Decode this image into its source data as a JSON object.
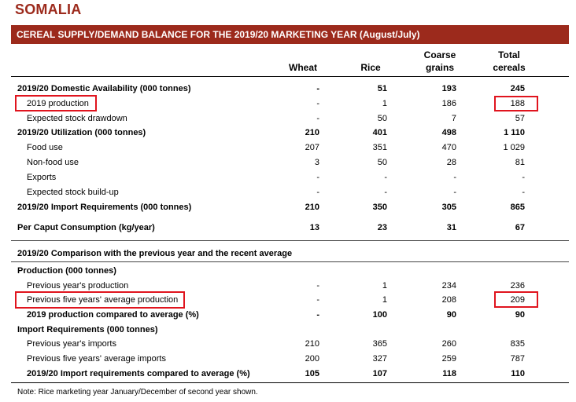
{
  "country": "SOMALIA",
  "banner": "CEREAL SUPPLY/DEMAND BALANCE FOR THE 2019/20 MARKETING YEAR (August/July)",
  "headers": {
    "wheat": "Wheat",
    "rice": "Rice",
    "coarse_1": "Coarse",
    "coarse_2": "grains",
    "total_1": "Total",
    "total_2": "cereals"
  },
  "rows": [
    {
      "label": "2019/20 Domestic Availability (000 tonnes)",
      "wheat": "-",
      "rice": "51",
      "coarse": "193",
      "total": "245"
    },
    {
      "label": "2019 production",
      "wheat": "-",
      "rice": "1",
      "coarse": "186",
      "total": "188"
    },
    {
      "label": "Expected stock drawdown",
      "wheat": "-",
      "rice": "50",
      "coarse": "7",
      "total": "57"
    },
    {
      "label": "2019/20 Utilization  (000 tonnes)",
      "wheat": "210",
      "rice": "401",
      "coarse": "498",
      "total": "1 110"
    },
    {
      "label": "Food use",
      "wheat": "207",
      "rice": "351",
      "coarse": "470",
      "total": "1 029"
    },
    {
      "label": "Non-food use",
      "wheat": "3",
      "rice": "50",
      "coarse": "28",
      "total": "81"
    },
    {
      "label": "Exports",
      "wheat": "-",
      "rice": "-",
      "coarse": "-",
      "total": "-"
    },
    {
      "label": "Expected stock build-up",
      "wheat": "-",
      "rice": "-",
      "coarse": "-",
      "total": "-"
    },
    {
      "label": "2019/20 Import Requirements  (000 tonnes)",
      "wheat": "210",
      "rice": "350",
      "coarse": "305",
      "total": "865"
    },
    {
      "label": "Per Caput Consumption (kg/year)",
      "wheat": "13",
      "rice": "23",
      "coarse": "31",
      "total": "67"
    }
  ],
  "comparison_title": "2019/20 Comparison with the previous year and the recent average",
  "production_title": "Production (000 tonnes)",
  "prod_rows": [
    {
      "label": "Previous year's production",
      "wheat": "-",
      "rice": "1",
      "coarse": "234",
      "total": "236"
    },
    {
      "label": "Previous five years' average production",
      "wheat": "-",
      "rice": "1",
      "coarse": "208",
      "total": "209"
    },
    {
      "label": "2019 production compared to average (%)",
      "wheat": "-",
      "rice": "100",
      "coarse": "90",
      "total": "90"
    }
  ],
  "import_title": "Import Requirements (000 tonnes)",
  "imp_rows": [
    {
      "label": "Previous year's imports",
      "wheat": "210",
      "rice": "365",
      "coarse": "260",
      "total": "835"
    },
    {
      "label": "Previous five years' average imports",
      "wheat": "200",
      "rice": "327",
      "coarse": "259",
      "total": "787"
    },
    {
      "label": "2019/20 Import requirements compared to average (%)",
      "wheat": "105",
      "rice": "107",
      "coarse": "118",
      "total": "110"
    }
  ],
  "note": "Note: Rice marketing year January/December of second year shown.",
  "colors": {
    "banner": "#9c2a1c",
    "highlight_box": "#e0141e"
  }
}
